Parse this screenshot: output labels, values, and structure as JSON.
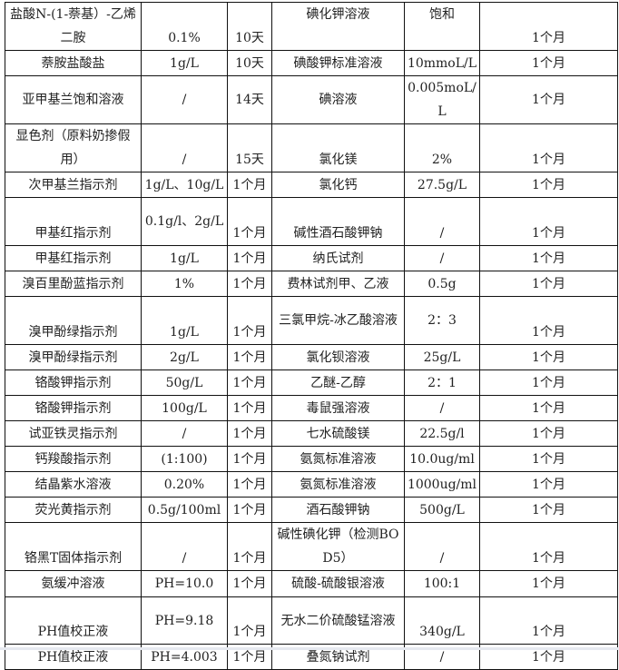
{
  "table": {
    "rows": [
      [
        "盐酸N-(1-萘基）-乙烯二胺",
        "0.1%",
        "10天",
        "碘化钾溶液",
        "饱和",
        "1个月"
      ],
      [
        "萘胺盐酸盐",
        "1g/L",
        "10天",
        "碘酸钾标准溶液",
        "10mmoL/L",
        "1个月"
      ],
      [
        "亚甲基兰饱和溶液",
        "/",
        "14天",
        "碘溶液",
        "0.005moL/L",
        "1个月"
      ],
      [
        "显色剂（原料奶掺假用）",
        "/",
        "15天",
        "氯化镁",
        "2%",
        "1个月"
      ],
      [
        "次甲基兰指示剂",
        "1g/L、10g/L",
        "1个月",
        "氯化钙",
        "27.5g/L",
        "1个月"
      ],
      [
        "甲基红指示剂",
        "0.1g/l、2g/L",
        "1个月",
        "碱性酒石酸钾钠",
        "/",
        "1个月"
      ],
      [
        "甲基红指示剂",
        "1g/L",
        "1个月",
        "纳氏试剂",
        "/",
        "1个月"
      ],
      [
        "溴百里酚蓝指示剂",
        "1%",
        "1个月",
        "费林试剂甲、乙液",
        "0.5g",
        "1个月"
      ],
      [
        "溴甲酚绿指示剂",
        "1g/L",
        "1个月",
        "三氯甲烷-冰乙酸溶液",
        "2：3",
        "1个月"
      ],
      [
        "溴甲酚绿指示剂",
        "2g/L",
        "1个月",
        "氯化钡溶液",
        "25g/L",
        "1个月"
      ],
      [
        "铬酸钾指示剂",
        "50g/L",
        "1个月",
        "乙醚-乙醇",
        "2：1",
        "1个月"
      ],
      [
        "铬酸钾指示剂",
        "100g/L",
        "1个月",
        "毒鼠强溶液",
        "/",
        "1个月"
      ],
      [
        "试亚铁灵指示剂",
        "/",
        "1个月",
        "七水硫酸镁",
        "22.5g/l",
        "1个月"
      ],
      [
        "钙羧酸指示剂",
        "(1:100)",
        "1个月",
        "氨氮标准溶液",
        "10.0ug/ml",
        "1个月"
      ],
      [
        "结晶紫水溶液",
        "0.20%",
        "1个月",
        "氨氮标准溶液",
        "1000ug/ml",
        "1个月"
      ],
      [
        "荧光黄指示剂",
        "0.5g/100ml",
        "1个月",
        "酒石酸钾钠",
        "500g/L",
        "1个月"
      ],
      [
        "铬黑T固体指示剂",
        "/",
        "1个月",
        "碱性碘化钾（检测BOD5）",
        "/",
        "1个月"
      ],
      [
        "氨缓冲溶液",
        "PH=10.0",
        "1个月",
        "硫酸-硫酸银溶液",
        "100:1",
        "1个月"
      ],
      [
        "PH值校正液",
        "PH=9.18",
        "1个月",
        "无水二价硫酸锰溶液",
        "340g/L",
        "1个月"
      ],
      [
        "PH值校正液",
        "PH=4.003",
        "1个月",
        "叠氮钠试剂",
        "/",
        "1个月"
      ]
    ]
  }
}
